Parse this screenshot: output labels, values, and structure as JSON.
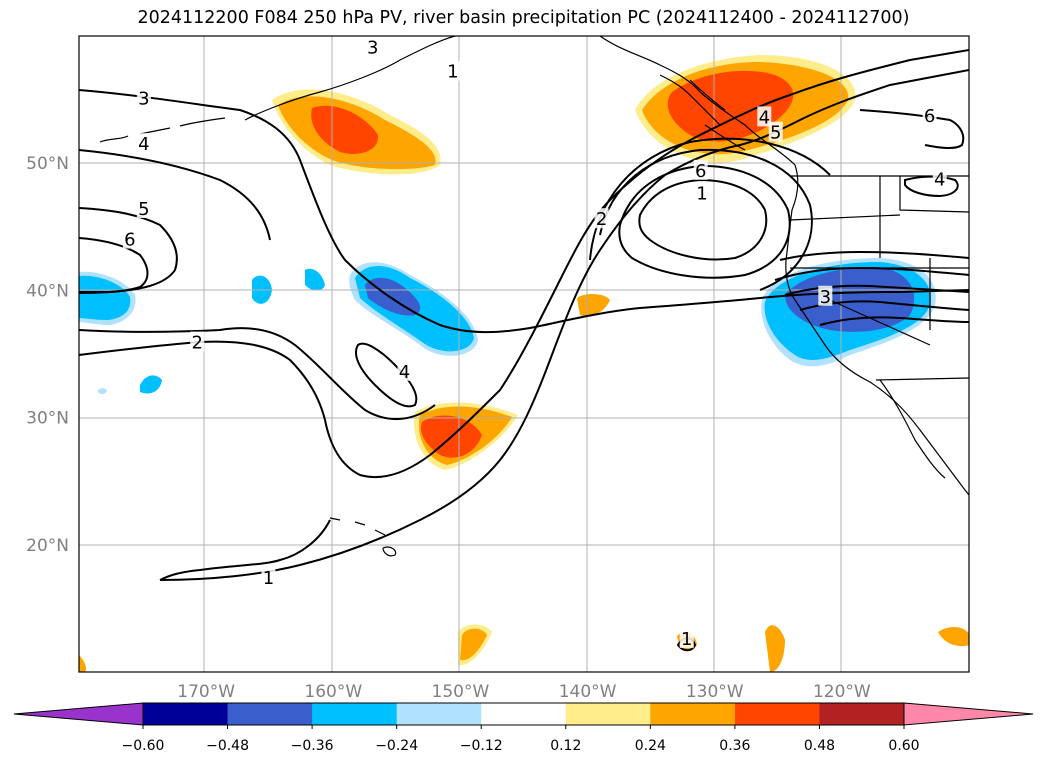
{
  "title": "2024112200 F084 250 hPa PV, river basin precipitation PC (2024112400 - 2024112700)",
  "map": {
    "extent": {
      "lon_min": -180,
      "lon_max": -110,
      "lat_min": 10,
      "lat_max": 60
    },
    "lat_labels": [
      {
        "lat": 50,
        "text": "50°N"
      },
      {
        "lat": 40,
        "text": "40°N"
      },
      {
        "lat": 30,
        "text": "30°N"
      },
      {
        "lat": 20,
        "text": "20°N"
      }
    ],
    "lon_labels": [
      {
        "lon": -170,
        "text": "170°W"
      },
      {
        "lon": -160,
        "text": "160°W"
      },
      {
        "lon": -150,
        "text": "150°W"
      },
      {
        "lon": -140,
        "text": "140°W"
      },
      {
        "lon": -130,
        "text": "130°W"
      },
      {
        "lon": -120,
        "text": "120°W"
      }
    ],
    "contour_labels": [
      {
        "text": "3",
        "lon": -174.9,
        "lat": 55.1
      },
      {
        "text": "3",
        "lon": -156.9,
        "lat": 59.1
      },
      {
        "text": "1",
        "lon": -150.6,
        "lat": 57.2
      },
      {
        "text": "4",
        "lon": -174.9,
        "lat": 51.5
      },
      {
        "text": "5",
        "lon": -174.9,
        "lat": 46.4
      },
      {
        "text": "6",
        "lon": -176.0,
        "lat": 44.0
      },
      {
        "text": "2",
        "lon": -170.7,
        "lat": 35.9
      },
      {
        "text": "4",
        "lon": -154.4,
        "lat": 33.6
      },
      {
        "text": "2",
        "lon": -138.9,
        "lat": 45.6
      },
      {
        "text": "1",
        "lon": -165.1,
        "lat": 17.4
      },
      {
        "text": "1",
        "lon": -131.0,
        "lat": 47.6
      },
      {
        "text": "6",
        "lon": -131.1,
        "lat": 49.4
      },
      {
        "text": "4",
        "lon": -126.1,
        "lat": 53.6
      },
      {
        "text": "5",
        "lon": -125.2,
        "lat": 52.4
      },
      {
        "text": "6",
        "lon": -113.1,
        "lat": 53.7
      },
      {
        "text": "4",
        "lon": -112.3,
        "lat": 48.7
      },
      {
        "text": "3",
        "lon": -121.3,
        "lat": 39.5
      },
      {
        "text": "1",
        "lon": -132.2,
        "lat": 12.6
      }
    ]
  },
  "colorbar": {
    "colors": [
      "#9933cc",
      "#000099",
      "#3a5fcd",
      "#00bfff",
      "#b0e2ff",
      "#ffffff",
      "#ffec8b",
      "#ffa500",
      "#ff4500",
      "#b22222",
      "#ff88aa"
    ],
    "ticks": [
      "−0.60",
      "−0.48",
      "−0.36",
      "−0.24",
      "−0.12",
      "0.12",
      "0.24",
      "0.36",
      "0.48",
      "0.60"
    ]
  }
}
